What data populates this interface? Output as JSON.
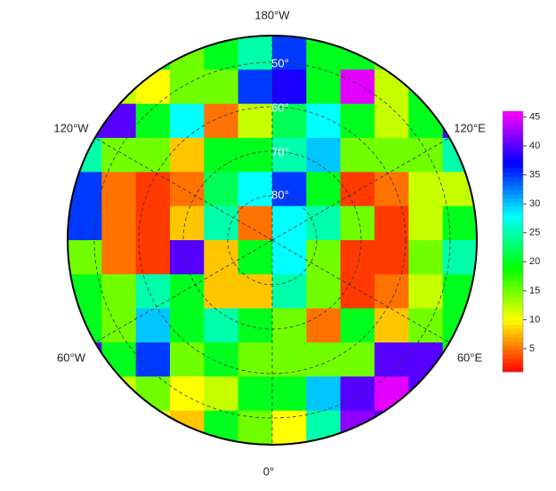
{
  "map": {
    "lon_labels": [
      "180°W",
      "120°E",
      "60°E",
      "0°",
      "60°W",
      "120°W"
    ],
    "lat_labels": [
      "50°",
      "60°",
      "70°",
      "80°"
    ],
    "grid": [
      [
        20,
        20,
        20,
        15,
        20,
        25,
        35,
        20,
        20,
        15,
        20,
        20
      ],
      [
        15,
        12,
        10,
        15,
        15,
        35,
        38,
        20,
        45,
        12,
        20,
        20
      ],
      [
        40,
        40,
        20,
        28,
        5,
        12,
        22,
        28,
        20,
        12,
        20,
        40
      ],
      [
        25,
        15,
        15,
        8,
        20,
        20,
        25,
        30,
        15,
        15,
        15,
        25
      ],
      [
        35,
        5,
        3,
        5,
        22,
        28,
        35,
        20,
        3,
        5,
        12,
        12
      ],
      [
        35,
        5,
        3,
        8,
        25,
        5,
        28,
        25,
        15,
        3,
        12,
        20
      ],
      [
        15,
        5,
        3,
        40,
        8,
        20,
        28,
        15,
        3,
        3,
        15,
        25
      ],
      [
        20,
        15,
        25,
        20,
        8,
        8,
        25,
        15,
        3,
        5,
        12,
        20
      ],
      [
        20,
        15,
        30,
        20,
        25,
        20,
        15,
        5,
        20,
        8,
        15,
        20
      ],
      [
        40,
        20,
        35,
        15,
        20,
        15,
        15,
        15,
        15,
        40,
        40,
        20
      ],
      [
        20,
        12,
        15,
        10,
        12,
        20,
        20,
        30,
        40,
        45,
        40,
        20
      ],
      [
        20,
        20,
        10,
        8,
        20,
        15,
        10,
        25,
        42,
        40,
        20,
        20
      ]
    ],
    "colormap": [
      "#ff0000",
      "#ffff00",
      "#00ff00",
      "#00ffff",
      "#0000ff",
      "#ff00ff"
    ]
  },
  "colorbar": {
    "lim": [
      1,
      46
    ],
    "ticks": [
      5,
      10,
      15,
      20,
      25,
      30,
      35,
      40,
      45
    ]
  }
}
